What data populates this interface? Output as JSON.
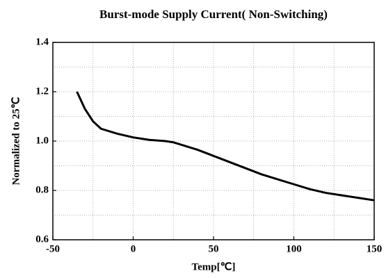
{
  "chart_data": {
    "type": "line",
    "title": "Burst-mode Supply Current( Non-Switching)",
    "xlabel": "Temp[℃]",
    "ylabel": "Normalized to 25℃",
    "x": [
      -35,
      -30,
      -25,
      -20,
      -10,
      0,
      10,
      20,
      25,
      30,
      40,
      50,
      60,
      70,
      80,
      90,
      100,
      110,
      120,
      130,
      140,
      150
    ],
    "series": [
      {
        "color": "#000000",
        "values": [
          1.2,
          1.13,
          1.08,
          1.05,
          1.03,
          1.015,
          1.005,
          1.0,
          0.995,
          0.985,
          0.965,
          0.94,
          0.915,
          0.89,
          0.865,
          0.845,
          0.825,
          0.805,
          0.79,
          0.78,
          0.77,
          0.76
        ]
      }
    ],
    "xlim": [
      -50,
      150
    ],
    "xticks": [
      -50,
      0,
      50,
      100,
      150
    ],
    "xminorticks": [
      -25,
      25,
      75,
      125
    ],
    "ylim": [
      0.6,
      1.4
    ],
    "yticks": [
      0.6,
      0.8,
      {
        "value": 1,
        "label": "1.0"
      },
      1.2,
      1.4
    ],
    "yminorticks": [
      0.7,
      0.9,
      1.1,
      1.3
    ],
    "grid": true
  }
}
